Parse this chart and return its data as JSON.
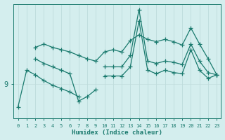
{
  "xlabel": "Humidex (Indice chaleur)",
  "bg_color": "#d4eeee",
  "line_color": "#1a7a6e",
  "grid_color_v": "#b8d8d8",
  "grid_color_h": "#c0dcdc",
  "ytick_label": "9",
  "ytick_val": 9,
  "ymin": 6,
  "ymax": 16,
  "xlim_min": -0.5,
  "xlim_max": 23.5,
  "line1_x": [
    0,
    1,
    2,
    3,
    4,
    5,
    6,
    7
  ],
  "line1_y": [
    7.0,
    10.2,
    9.8,
    9.3,
    8.9,
    8.6,
    8.3,
    7.9
  ],
  "line2_x": [
    2,
    3,
    4,
    5,
    6,
    7,
    8,
    9
  ],
  "line2_y": [
    11.2,
    10.8,
    10.5,
    10.2,
    9.9,
    7.5,
    7.9,
    8.5
  ],
  "line3_upper_x": [
    2,
    3,
    4,
    5,
    6,
    7,
    8,
    9,
    10,
    11,
    12,
    13,
    14,
    15,
    16,
    17,
    18,
    19,
    20,
    21,
    22,
    23
  ],
  "line3_upper_y": [
    12.2,
    12.5,
    12.2,
    12.0,
    11.8,
    11.5,
    11.2,
    11.0,
    11.8,
    12.0,
    11.8,
    12.8,
    13.3,
    12.9,
    12.7,
    12.9,
    12.7,
    12.4,
    13.9,
    12.5,
    11.2,
    9.8
  ],
  "line4_mid_x": [
    10,
    11,
    12,
    13,
    14,
    15,
    16,
    17,
    18,
    19,
    20,
    21,
    22,
    23
  ],
  "line4_mid_y": [
    10.5,
    10.5,
    10.5,
    11.5,
    15.5,
    11.0,
    10.8,
    11.0,
    10.9,
    10.7,
    12.5,
    11.0,
    10.0,
    9.8
  ],
  "line5_low_x": [
    10,
    11,
    12,
    13,
    14,
    15,
    16,
    17,
    18,
    19,
    20,
    21,
    22,
    23
  ],
  "line5_low_y": [
    9.7,
    9.7,
    9.7,
    10.5,
    14.5,
    10.2,
    9.9,
    10.2,
    10.0,
    9.9,
    12.0,
    10.2,
    9.5,
    9.8
  ]
}
